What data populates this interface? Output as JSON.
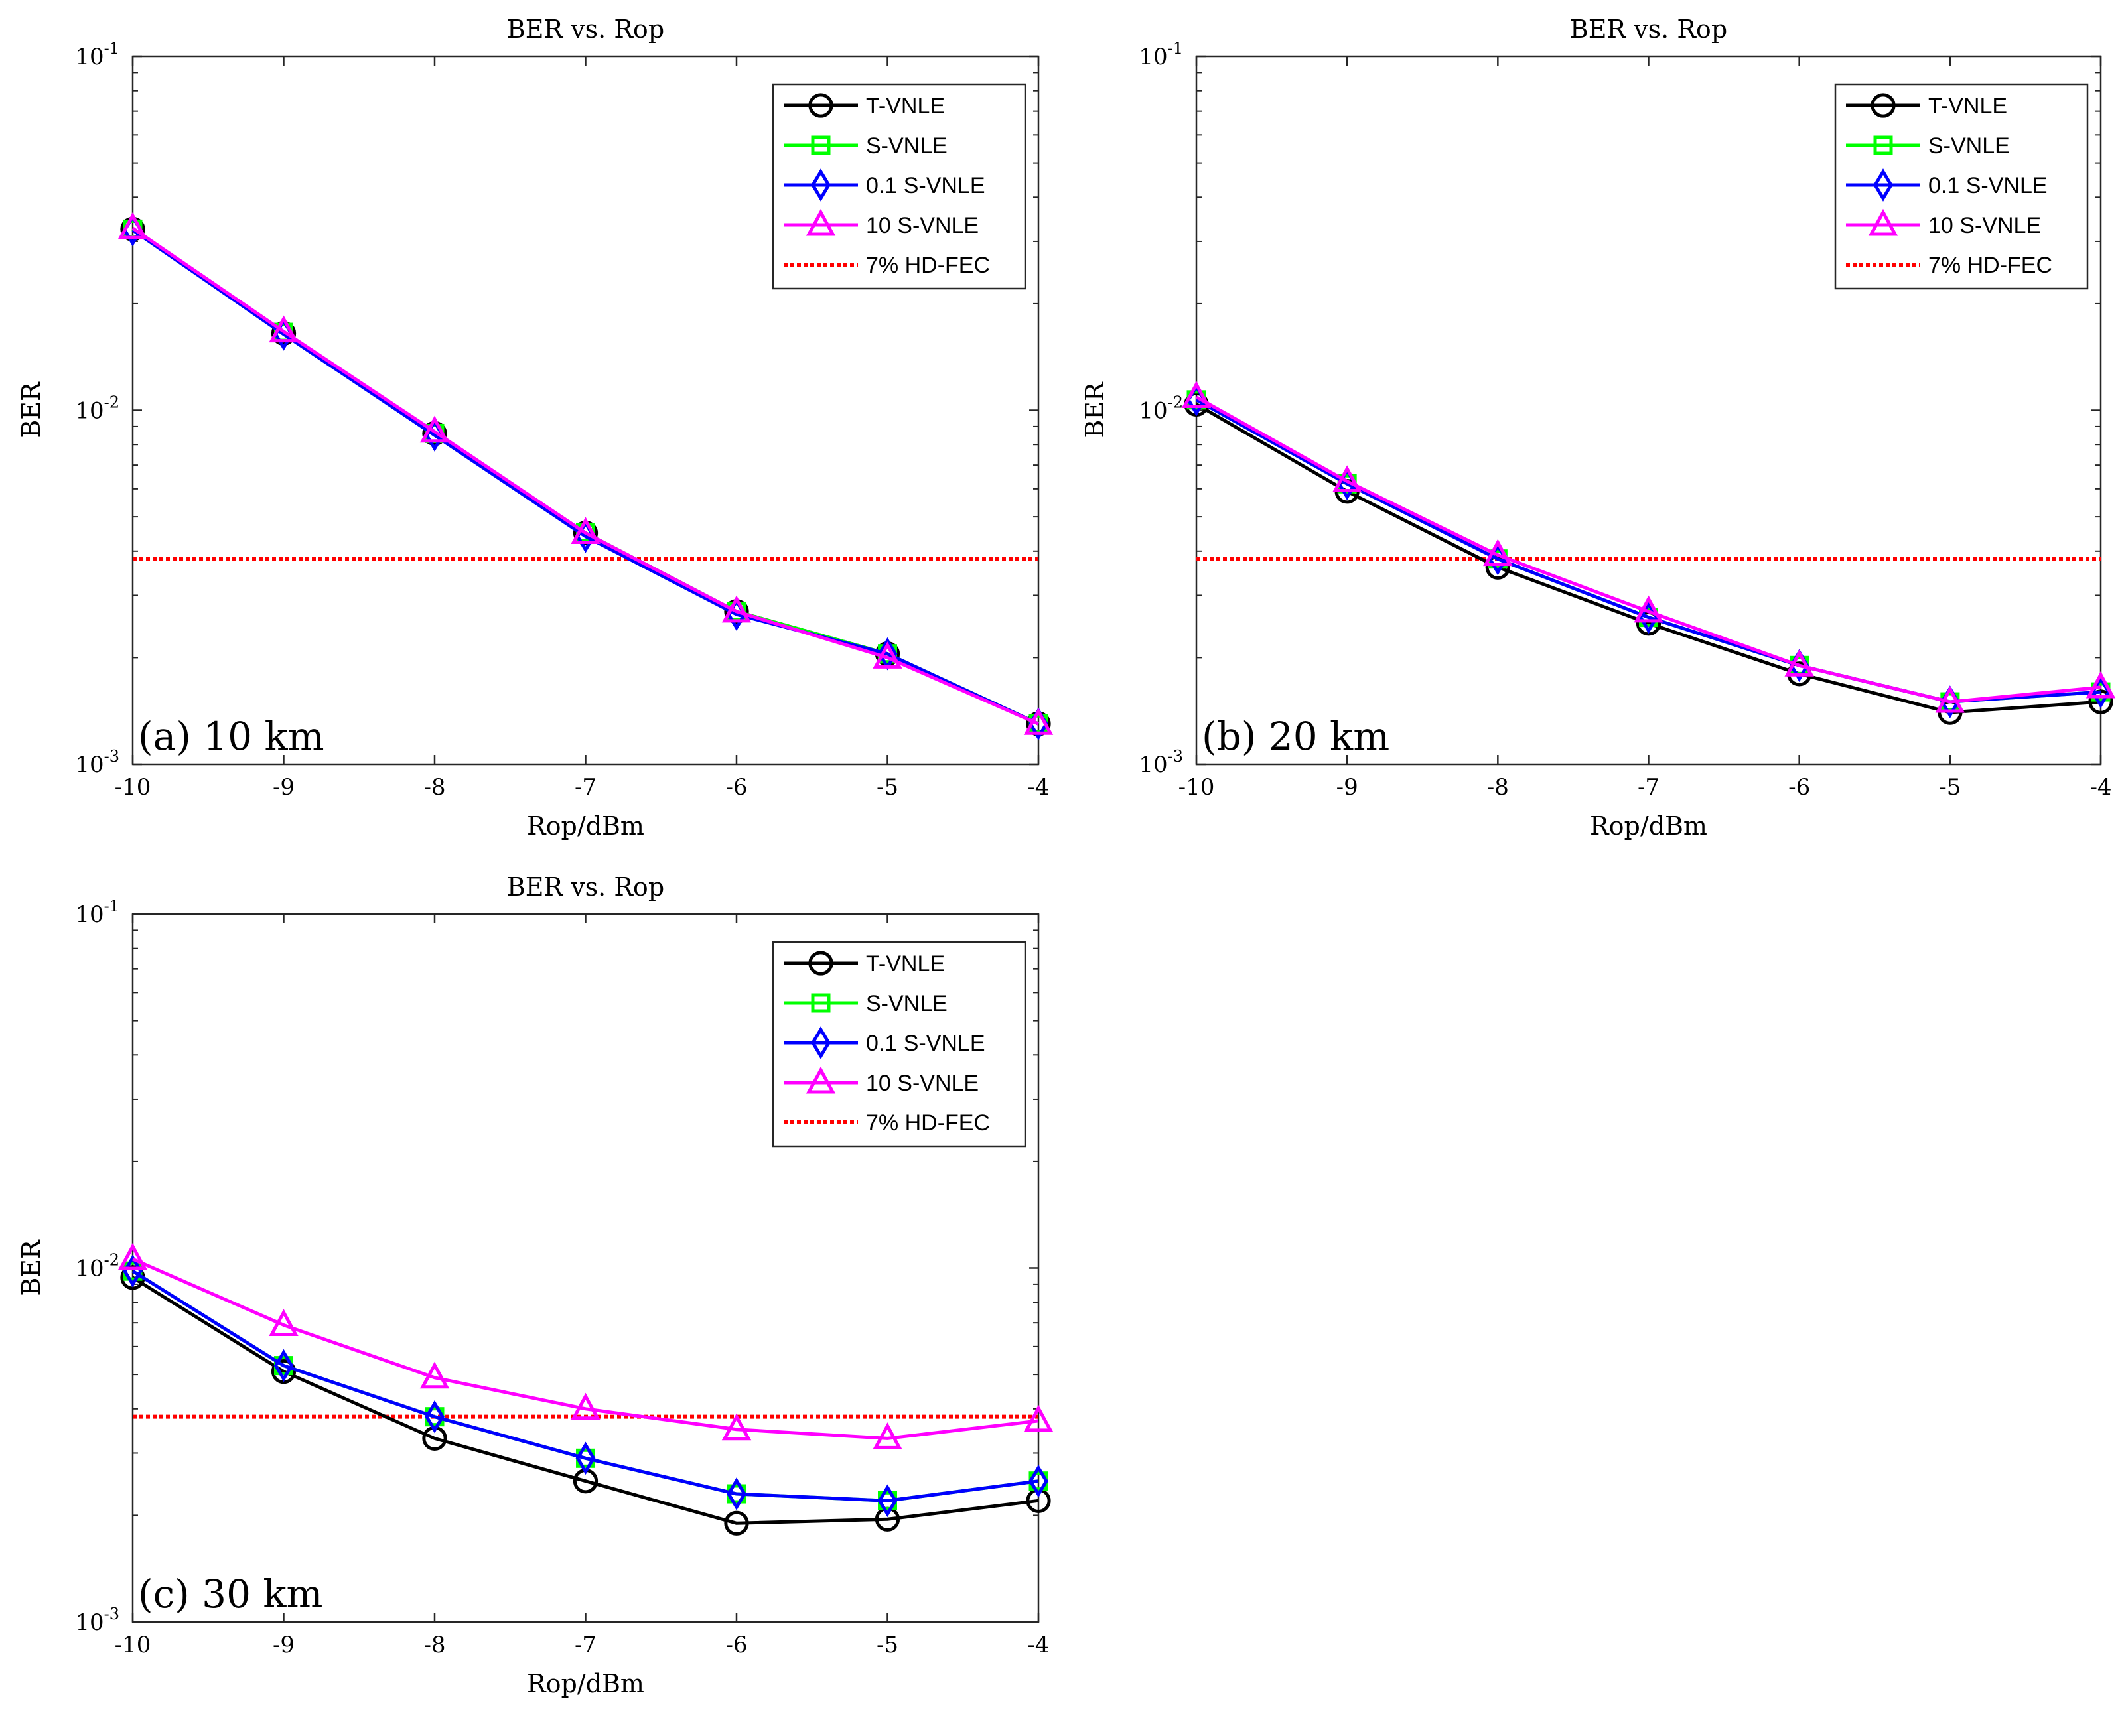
{
  "chart_data": [
    {
      "type": "line",
      "panel_label": "(a) 10 km",
      "title": "BER vs. Rop",
      "xlabel": "Rop/dBm",
      "ylabel": "BER",
      "x_ticks": [
        "-10",
        "-9",
        "-8",
        "-7",
        "-6",
        "-5",
        "-4"
      ],
      "y_ticks": [
        {
          "base": "10",
          "exp": "-1"
        },
        {
          "base": "10",
          "exp": "-2"
        },
        {
          "base": "10",
          "exp": "-3"
        }
      ],
      "xlim": [
        -10,
        -4
      ],
      "ylim": [
        0.001,
        0.1
      ],
      "yscale": "log",
      "legend_position": "top-right",
      "x": [
        -10,
        -9,
        -8,
        -7,
        -6,
        -5,
        -4
      ],
      "series": [
        {
          "name": "T-VNLE",
          "color": "#000000",
          "marker": "circle",
          "values": [
            0.0325,
            0.0165,
            0.0086,
            0.0045,
            0.0027,
            0.00205,
            0.0013
          ]
        },
        {
          "name": "S-VNLE",
          "color": "#00ff00",
          "marker": "square",
          "values": [
            0.0325,
            0.0166,
            0.0086,
            0.0045,
            0.0027,
            0.00205,
            0.0013
          ]
        },
        {
          "name": "0.1 S-VNLE",
          "color": "#0000ff",
          "marker": "diamond",
          "values": [
            0.0323,
            0.0164,
            0.0085,
            0.0044,
            0.00265,
            0.00205,
            0.0013
          ]
        },
        {
          "name": "10 S-VNLE",
          "color": "#ff00ff",
          "marker": "triangle",
          "values": [
            0.0327,
            0.0167,
            0.0087,
            0.0045,
            0.0027,
            0.002,
            0.0013
          ]
        }
      ],
      "threshold": {
        "name": "7% HD-FEC",
        "color": "#ff0000",
        "value": 0.0038
      }
    },
    {
      "type": "line",
      "panel_label": "(b) 20 km",
      "title": "BER vs. Rop",
      "xlabel": "Rop/dBm",
      "ylabel": "BER",
      "x_ticks": [
        "-10",
        "-9",
        "-8",
        "-7",
        "-6",
        "-5",
        "-4"
      ],
      "y_ticks": [
        {
          "base": "10",
          "exp": "-1"
        },
        {
          "base": "10",
          "exp": "-2"
        },
        {
          "base": "10",
          "exp": "-3"
        }
      ],
      "xlim": [
        -10,
        -4
      ],
      "ylim": [
        0.001,
        0.1
      ],
      "yscale": "log",
      "legend_position": "top-right",
      "x": [
        -10,
        -9,
        -8,
        -7,
        -6,
        -5,
        -4
      ],
      "series": [
        {
          "name": "T-VNLE",
          "color": "#000000",
          "marker": "circle",
          "values": [
            0.0104,
            0.0059,
            0.0036,
            0.0025,
            0.0018,
            0.0014,
            0.0015
          ]
        },
        {
          "name": "S-VNLE",
          "color": "#00ff00",
          "marker": "square",
          "values": [
            0.0107,
            0.0062,
            0.0038,
            0.0026,
            0.0019,
            0.0015,
            0.0016
          ]
        },
        {
          "name": "0.1 S-VNLE",
          "color": "#0000ff",
          "marker": "diamond",
          "values": [
            0.0107,
            0.0062,
            0.0038,
            0.0026,
            0.0019,
            0.0015,
            0.0016
          ]
        },
        {
          "name": "10 S-VNLE",
          "color": "#ff00ff",
          "marker": "triangle",
          "values": [
            0.0109,
            0.0063,
            0.0039,
            0.0027,
            0.0019,
            0.0015,
            0.00165
          ]
        }
      ],
      "threshold": {
        "name": "7% HD-FEC",
        "color": "#ff0000",
        "value": 0.0038
      }
    },
    {
      "type": "line",
      "panel_label": "(c) 30 km",
      "title": "BER vs. Rop",
      "xlabel": "Rop/dBm",
      "ylabel": "BER",
      "x_ticks": [
        "-10",
        "-9",
        "-8",
        "-7",
        "-6",
        "-5",
        "-4"
      ],
      "y_ticks": [
        {
          "base": "10",
          "exp": "-1"
        },
        {
          "base": "10",
          "exp": "-2"
        },
        {
          "base": "10",
          "exp": "-3"
        }
      ],
      "xlim": [
        -10,
        -4
      ],
      "ylim": [
        0.001,
        0.1
      ],
      "yscale": "log",
      "legend_position": "top-right",
      "x": [
        -10,
        -9,
        -8,
        -7,
        -6,
        -5,
        -4
      ],
      "series": [
        {
          "name": "T-VNLE",
          "color": "#000000",
          "marker": "circle",
          "values": [
            0.0094,
            0.0051,
            0.0033,
            0.0025,
            0.0019,
            0.00195,
            0.0022
          ]
        },
        {
          "name": "S-VNLE",
          "color": "#00ff00",
          "marker": "square",
          "values": [
            0.0098,
            0.0053,
            0.0038,
            0.0029,
            0.0023,
            0.0022,
            0.0025
          ]
        },
        {
          "name": "0.1 S-VNLE",
          "color": "#0000ff",
          "marker": "diamond",
          "values": [
            0.0098,
            0.0053,
            0.0038,
            0.0029,
            0.0023,
            0.0022,
            0.0025
          ]
        },
        {
          "name": "10 S-VNLE",
          "color": "#ff00ff",
          "marker": "triangle",
          "values": [
            0.0106,
            0.0069,
            0.0049,
            0.004,
            0.0035,
            0.0033,
            0.0037
          ]
        }
      ],
      "threshold": {
        "name": "7% HD-FEC",
        "color": "#ff0000",
        "value": 0.0038
      }
    }
  ]
}
